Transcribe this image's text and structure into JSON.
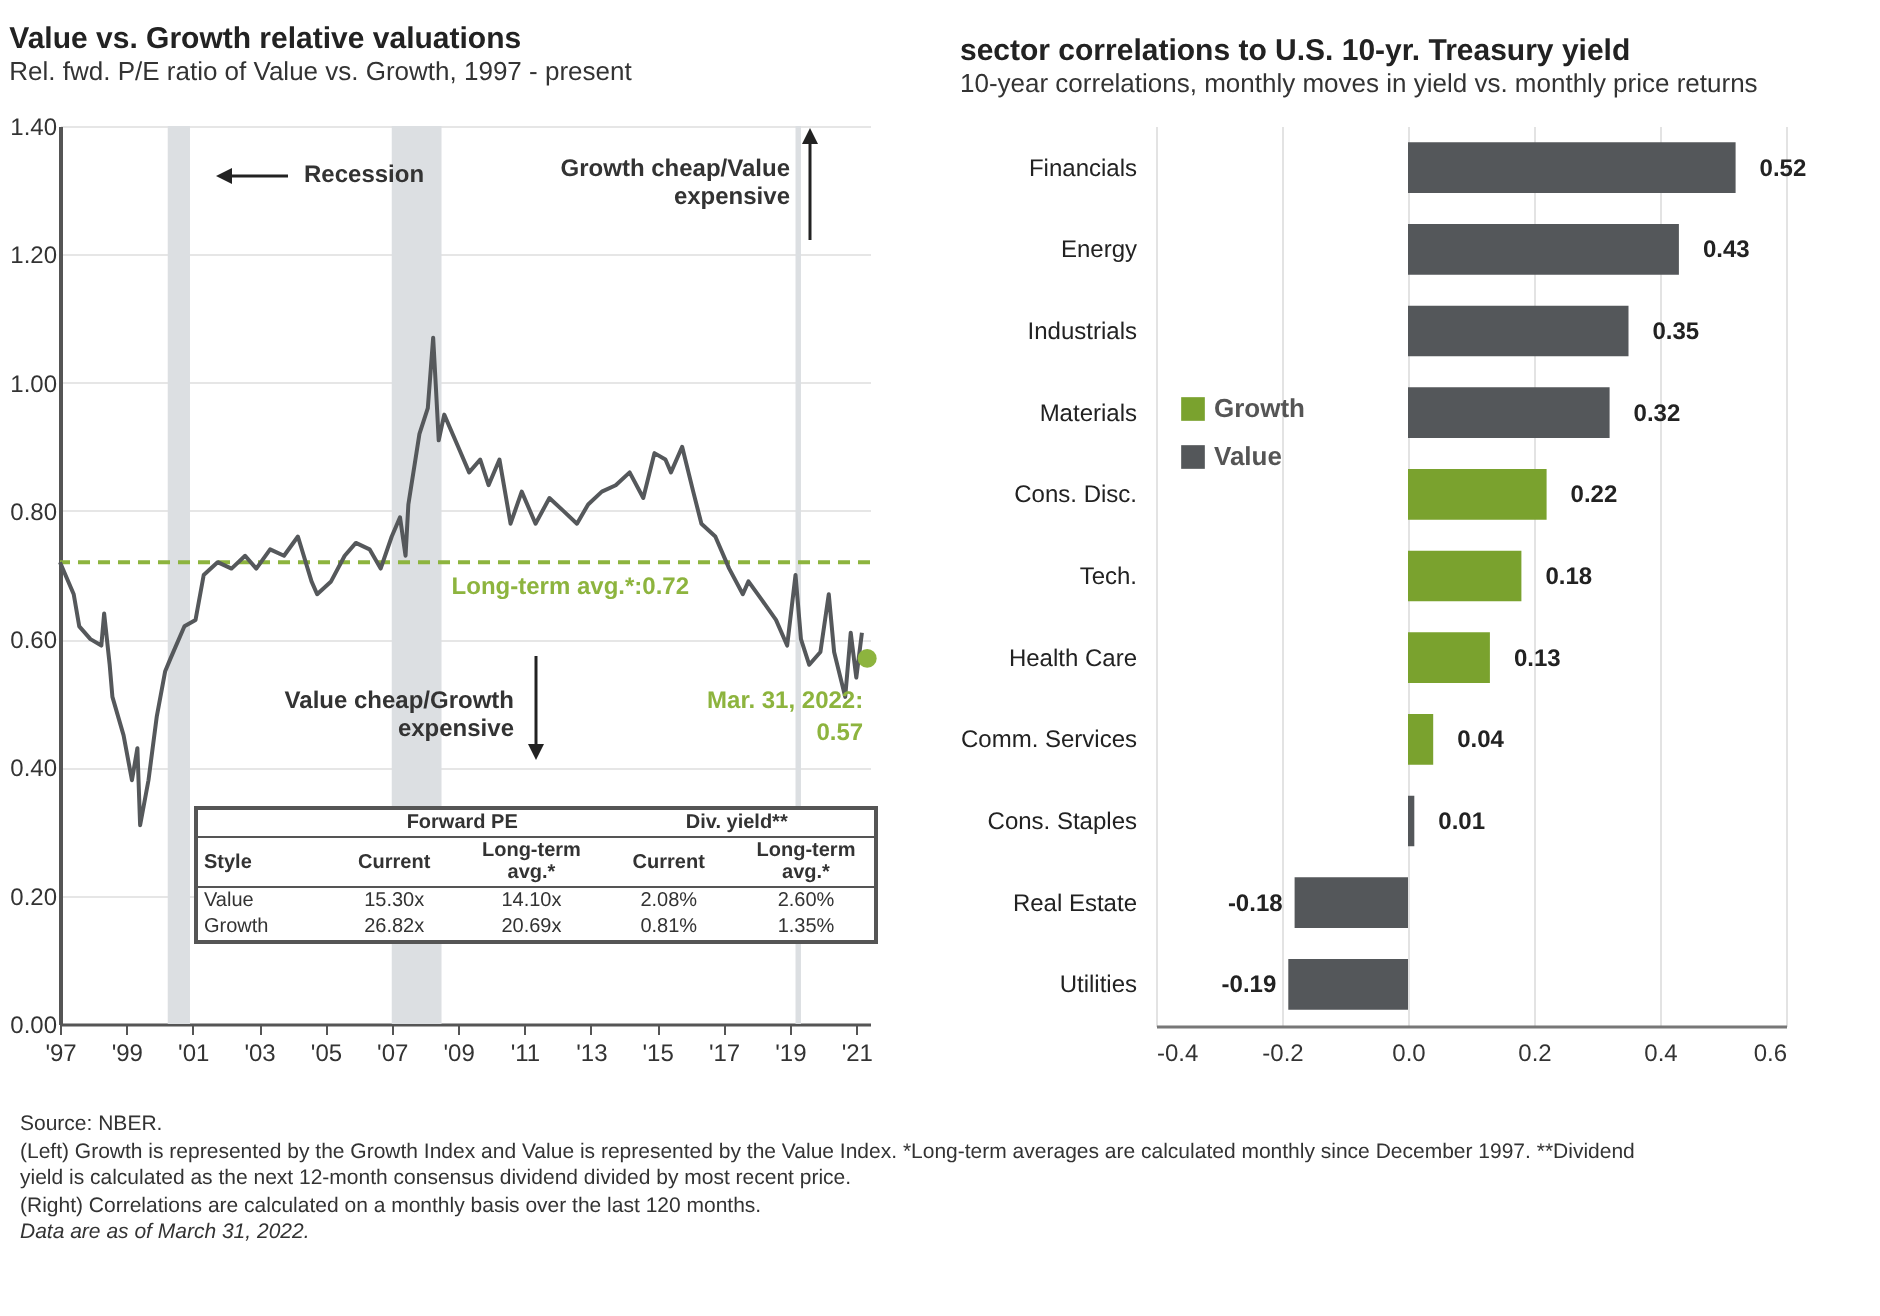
{
  "chart_data": [
    {
      "type": "line",
      "title": "Value vs. Growth relative valuations",
      "subtitle": "Rel. fwd. P/E ratio of Value vs. Growth, 1997 - present",
      "x": [
        "1997-12",
        "1998-05",
        "1998-07",
        "1998-11",
        "1999-03",
        "1999-04",
        "1999-06",
        "1999-07",
        "1999-11",
        "2000-02",
        "2000-04",
        "2000-05",
        "2000-08",
        "2000-11",
        "2001-02",
        "2001-04",
        "2001-09",
        "2002-01",
        "2002-04",
        "2002-09",
        "2003-02",
        "2003-07",
        "2003-11",
        "2004-04",
        "2004-09",
        "2005-02",
        "2005-07",
        "2005-09",
        "2006-02",
        "2006-07",
        "2006-11",
        "2007-04",
        "2007-08",
        "2007-12",
        "2008-03",
        "2008-05",
        "2008-06",
        "2008-10",
        "2009-01",
        "2009-03",
        "2009-04",
        "2009-05",
        "2009-07",
        "2009-12",
        "2010-04",
        "2010-08",
        "2010-11",
        "2011-03",
        "2011-07",
        "2011-11",
        "2012-04",
        "2012-09",
        "2013-02",
        "2013-07",
        "2013-11",
        "2014-04",
        "2014-09",
        "2015-02",
        "2015-07",
        "2015-11",
        "2016-03",
        "2016-05",
        "2016-09",
        "2017-01",
        "2017-04",
        "2017-09",
        "2018-02",
        "2018-07",
        "2018-09",
        "2019-02",
        "2019-07",
        "2019-11",
        "2020-02",
        "2020-04",
        "2020-07",
        "2020-11",
        "2021-02",
        "2021-04",
        "2021-08",
        "2021-10",
        "2021-12",
        "2022-02"
      ],
      "series": [
        {
          "color": "#55585b",
          "values": [
            0.72,
            0.67,
            0.62,
            0.6,
            0.59,
            0.64,
            0.56,
            0.51,
            0.45,
            0.38,
            0.43,
            0.31,
            0.38,
            0.48,
            0.55,
            0.57,
            0.62,
            0.63,
            0.7,
            0.72,
            0.71,
            0.73,
            0.71,
            0.74,
            0.73,
            0.76,
            0.69,
            0.67,
            0.69,
            0.73,
            0.75,
            0.74,
            0.71,
            0.76,
            0.79,
            0.73,
            0.81,
            0.92,
            0.96,
            1.07,
            0.99,
            0.91,
            0.95,
            0.9,
            0.86,
            0.88,
            0.84,
            0.88,
            0.78,
            0.83,
            0.78,
            0.82,
            0.8,
            0.78,
            0.81,
            0.83,
            0.84,
            0.86,
            0.82,
            0.89,
            0.88,
            0.86,
            0.9,
            0.83,
            0.78,
            0.76,
            0.71,
            0.67,
            0.69,
            0.66,
            0.63,
            0.59,
            0.7,
            0.6,
            0.56,
            0.58,
            0.67,
            0.58,
            0.51,
            0.61,
            0.54,
            0.61
          ]
        },
        {
          "type": "scatter",
          "color": "#8db43e",
          "x": [
            "2022-03-31"
          ],
          "values": [
            0.57
          ]
        }
      ],
      "xlim": [
        "1997-12",
        "2022-05"
      ],
      "xticks": [
        {
          "value": "1997-12",
          "label": "'97"
        },
        {
          "value": "1999-12",
          "label": "'99"
        },
        {
          "value": "2001-12",
          "label": "'01"
        },
        {
          "value": "2003-12",
          "label": "'03"
        },
        {
          "value": "2005-12",
          "label": "'05"
        },
        {
          "value": "2007-12",
          "label": "'07"
        },
        {
          "value": "2009-12",
          "label": "'09"
        },
        {
          "value": "2011-12",
          "label": "'11"
        },
        {
          "value": "2013-12",
          "label": "'13"
        },
        {
          "value": "2015-12",
          "label": "'15"
        },
        {
          "value": "2017-12",
          "label": "'17"
        },
        {
          "value": "2019-12",
          "label": "'19"
        },
        {
          "value": "2021-12",
          "label": "'21"
        }
      ],
      "ylim": [
        0,
        1.4
      ],
      "yticks": [
        {
          "value": 0,
          "label": "0.00"
        },
        {
          "value": 0.2,
          "label": "0.20"
        },
        {
          "value": 0.4,
          "label": "0.40"
        },
        {
          "value": 0.6,
          "label": "0.60"
        },
        {
          "value": 0.8,
          "label": "0.80"
        },
        {
          "value": 1.0,
          "label": "1.00"
        },
        {
          "value": 1.2,
          "label": "1.20"
        },
        {
          "value": 1.4,
          "label": "1.40"
        }
      ],
      "grid": "y",
      "bands": [
        {
          "axis": "x",
          "from": "2001-03",
          "to": "2001-11",
          "color": "#dcdfe2"
        },
        {
          "axis": "x",
          "from": "2007-12",
          "to": "2009-06",
          "color": "#dcdfe2"
        },
        {
          "axis": "x",
          "from": "2020-02",
          "to": "2020-04",
          "color": "#dcdfe2"
        }
      ],
      "ref_lines": [
        {
          "axis": "y",
          "value": 0.72,
          "label": "Long-term avg.*:0.72",
          "color": "#8db43e",
          "line_style": "dashed"
        }
      ],
      "annotations": [
        "Recession",
        "Growth cheap/Value\nexpensive",
        "Value cheap/Growth\nexpensive",
        {
          "text": "Mar. 31, 2022:\n0.57",
          "x": "2022-03-31",
          "y": 0.57
        },
        "Forward PE",
        "Div. yield**",
        "Style",
        "Current",
        "Long-term avg.*",
        "Current",
        "Long-term avg.*",
        "Value",
        "15.30x",
        "14.10x",
        "2.08%",
        "2.60%",
        "Growth",
        "26.82x",
        "20.69x",
        "0.81%",
        "1.35%",
        "Source: NBER.",
        "(Left) Growth is represented by the Growth Index and Value is represented by the Value Index. *Long-term averages are calculated monthly since December 1997. **Dividend yield is calculated as the next 12-month consensus dividend divided by most recent price.",
        "(Right) Correlations are calculated on a monthly basis over the last 120 months.",
        "Data are as of March 31, 2022."
      ]
    },
    {
      "type": "bar",
      "orientation": "horizontal",
      "title": "sector correlations to U.S. 10-yr. Treasury yield",
      "subtitle": "10-year correlations, monthly moves in yield vs. monthly price returns",
      "categories": [
        "Financials",
        "Energy",
        "Industrials",
        "Materials",
        "Cons. Disc.",
        "Tech.",
        "Health Care",
        "Comm. Services",
        "Cons. Staples",
        "Real Estate",
        "Utilities"
      ],
      "series": [
        {
          "name": "Growth",
          "color": "#7aa22e",
          "values": [
            null,
            null,
            null,
            null,
            0.22,
            0.18,
            0.13,
            0.04,
            null,
            null,
            null
          ]
        },
        {
          "name": "Value",
          "color": "#54575a",
          "values": [
            0.52,
            0.43,
            0.35,
            0.32,
            null,
            null,
            null,
            null,
            0.01,
            -0.18,
            -0.19
          ]
        }
      ],
      "xlim": [
        -0.4,
        0.6
      ],
      "xticks": [
        -0.4,
        -0.2,
        {
          "value": 0,
          "label": "0.0"
        },
        0.2,
        0.4,
        0.6
      ],
      "grid": "x",
      "legend": "left",
      "data_labels": true
    }
  ]
}
